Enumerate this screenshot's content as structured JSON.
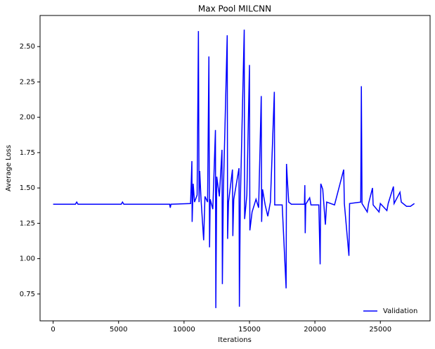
{
  "chart_data": {
    "type": "line",
    "title": "Max Pool MILCNN",
    "x_label": "Iterations",
    "y_label": "Average Loss",
    "xlim": [
      -1000,
      28800
    ],
    "ylim": [
      0.56,
      2.72
    ],
    "xticks": [
      0,
      5000,
      10000,
      15000,
      20000,
      25000
    ],
    "yticks": [
      0.75,
      {
        "value": 1,
        "label": "1.00"
      },
      1.25,
      {
        "value": 1.5,
        "label": "1.50"
      },
      1.75,
      {
        "value": 2,
        "label": "2.00"
      },
      2.25,
      {
        "value": 2.5,
        "label": "2.50"
      }
    ],
    "legend": "lower right",
    "series": [
      {
        "name": "Validation",
        "color": "#0000ff",
        "x": [
          0,
          1700,
          1800,
          1900,
          5200,
          5300,
          5400,
          8900,
          8950,
          9000,
          10500,
          10600,
          10620,
          10700,
          10800,
          11000,
          11100,
          11150,
          11200,
          11300,
          11500,
          11600,
          11800,
          11900,
          11950,
          12000,
          12200,
          12400,
          12430,
          12500,
          12700,
          12900,
          12930,
          13000,
          13300,
          13330,
          13400,
          13700,
          13730,
          13800,
          14200,
          14230,
          14300,
          14600,
          14630,
          14800,
          15000,
          15030,
          15200,
          15500,
          15700,
          15900,
          15930,
          16000,
          16200,
          16400,
          16600,
          16900,
          16930,
          17500,
          17800,
          17830,
          17900,
          18000,
          18200,
          19200,
          19230,
          19260,
          19300,
          19600,
          19700,
          20300,
          20400,
          20450,
          20600,
          20800,
          20900,
          21500,
          22200,
          22250,
          22600,
          22650,
          23500,
          23550,
          23600,
          24000,
          24100,
          24400,
          24450,
          24900,
          25000,
          25500,
          25600,
          26000,
          26050,
          26500,
          26600,
          27000,
          27300,
          27600
        ],
        "values": [
          1.385,
          1.385,
          1.4,
          1.385,
          1.385,
          1.4,
          1.385,
          1.385,
          1.36,
          1.385,
          1.39,
          1.69,
          1.26,
          1.53,
          1.4,
          1.45,
          2.61,
          1.4,
          1.62,
          1.42,
          1.13,
          1.44,
          1.4,
          2.43,
          1.08,
          1.42,
          1.35,
          1.91,
          0.65,
          1.58,
          1.44,
          1.77,
          0.82,
          1.45,
          2.58,
          1.14,
          1.4,
          1.63,
          1.16,
          1.42,
          1.64,
          0.66,
          1.4,
          2.62,
          1.28,
          1.45,
          2.37,
          1.2,
          1.33,
          1.42,
          1.36,
          2.15,
          1.26,
          1.49,
          1.38,
          1.3,
          1.4,
          2.18,
          1.38,
          1.38,
          0.79,
          1.67,
          1.55,
          1.4,
          1.385,
          1.385,
          1.52,
          1.18,
          1.385,
          1.43,
          1.38,
          1.38,
          0.96,
          1.53,
          1.49,
          1.24,
          1.4,
          1.38,
          1.63,
          1.39,
          1.02,
          1.39,
          1.4,
          2.22,
          1.39,
          1.33,
          1.39,
          1.5,
          1.38,
          1.33,
          1.39,
          1.34,
          1.39,
          1.51,
          1.39,
          1.47,
          1.4,
          1.37,
          1.37,
          1.39
        ]
      }
    ]
  }
}
